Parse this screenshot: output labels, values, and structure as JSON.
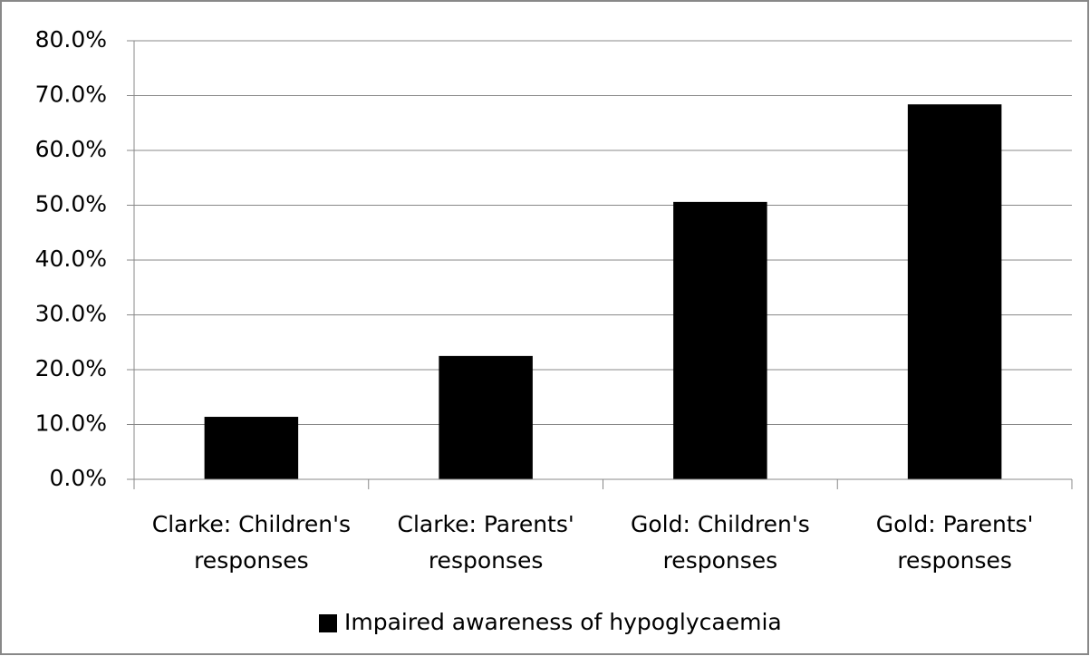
{
  "chart_data": {
    "type": "bar",
    "categories": [
      "Clarke: Children's responses",
      "Clarke: Parents' responses",
      "Gold: Children's responses",
      "Gold: Parents' responses"
    ],
    "series": [
      {
        "name": "Impaired awareness of hypoglycaemia",
        "color": "#000000",
        "values": [
          11.4,
          22.5,
          50.6,
          68.4
        ]
      }
    ],
    "ylim": [
      0,
      80
    ],
    "yticks": [
      {
        "value": 0,
        "label": "0.0%"
      },
      {
        "value": 10,
        "label": "10.0%"
      },
      {
        "value": 20,
        "label": "20.0%"
      },
      {
        "value": 30,
        "label": "30.0%"
      },
      {
        "value": 40,
        "label": "40.0%"
      },
      {
        "value": 50,
        "label": "50.0%"
      },
      {
        "value": 60,
        "label": "60.0%"
      },
      {
        "value": 70,
        "label": "70.0%"
      },
      {
        "value": 80,
        "label": "80.0%"
      }
    ],
    "grid": true,
    "legend": "bottom"
  }
}
